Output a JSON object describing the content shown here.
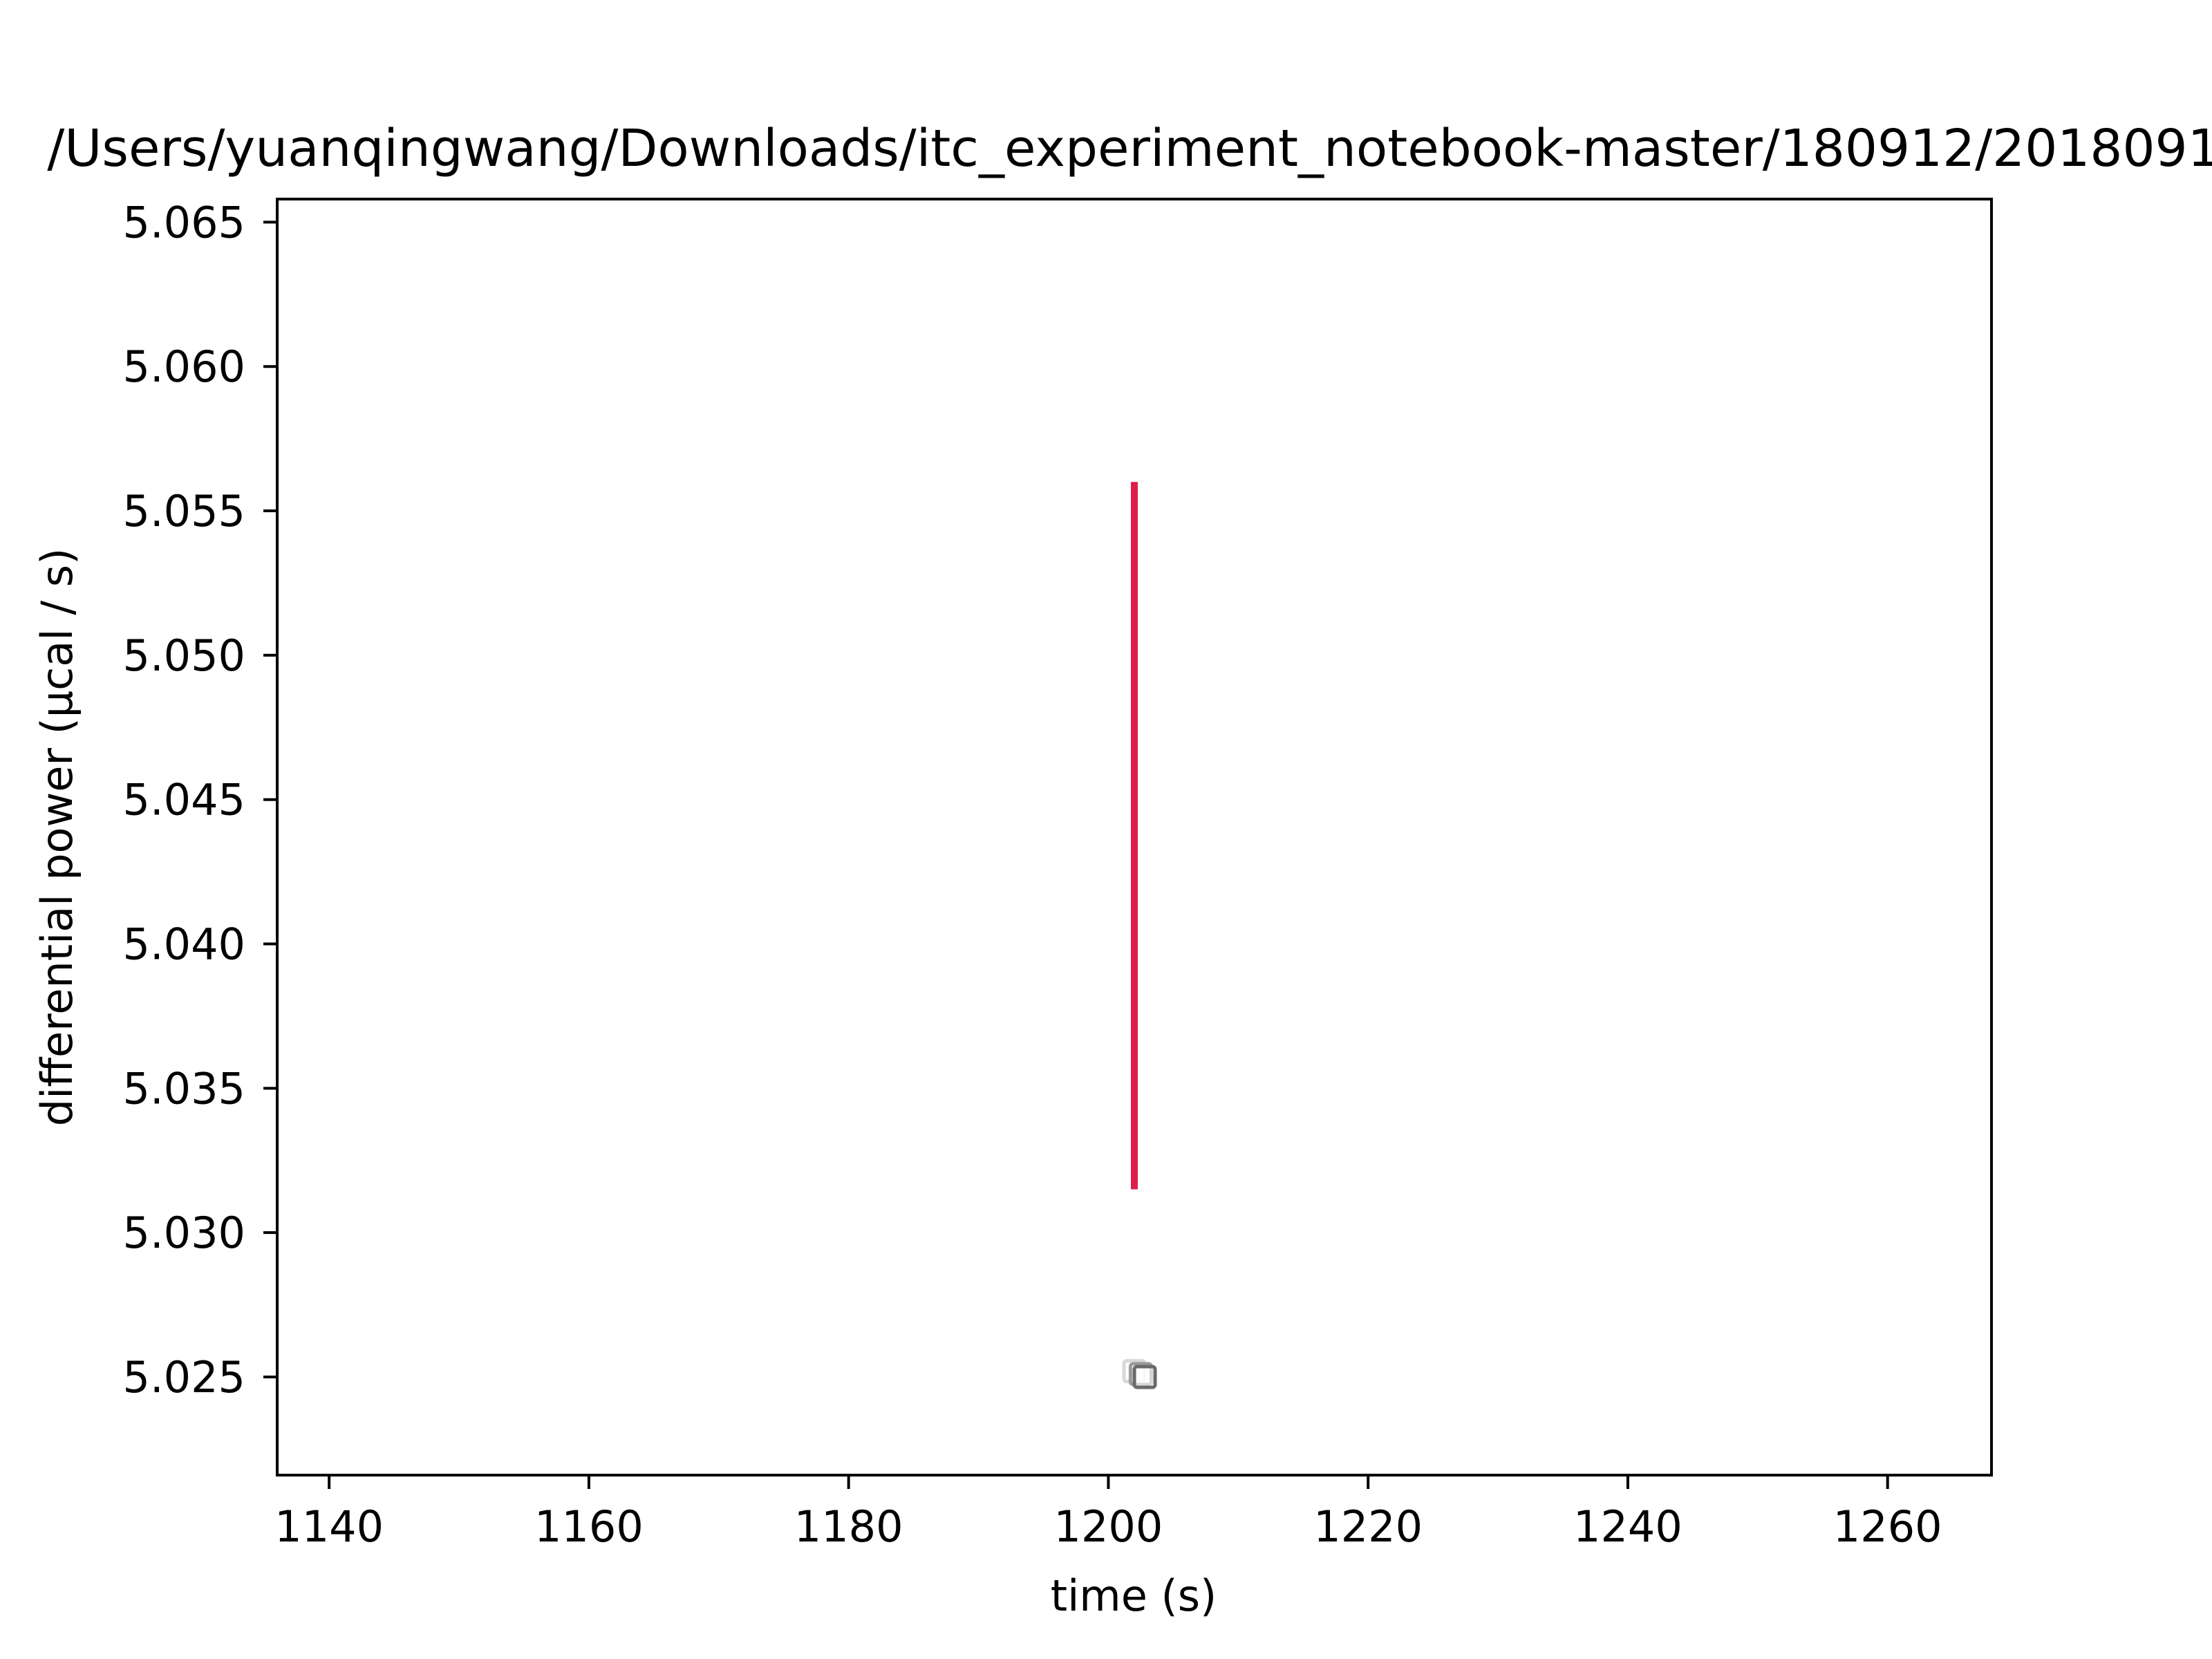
{
  "chart_data": {
    "type": "line",
    "title": "/Users/yuanqingwang/Downloads/itc_experiment_notebook-master/180912/2018091",
    "xlabel": "time (s)",
    "ylabel": "differential power (μcal / s)",
    "xlim": [
      1136,
      1268
    ],
    "ylim": [
      5.0216,
      5.0658
    ],
    "xticks": [
      1140,
      1160,
      1180,
      1200,
      1220,
      1240,
      1260
    ],
    "xtick_labels": [
      "1140",
      "1160",
      "1180",
      "1200",
      "1220",
      "1240",
      "1260"
    ],
    "yticks": [
      5.025,
      5.03,
      5.035,
      5.04,
      5.045,
      5.05,
      5.055,
      5.06,
      5.065
    ],
    "ytick_labels": [
      "5.025",
      "5.030",
      "5.035",
      "5.040",
      "5.045",
      "5.050",
      "5.055",
      "5.060",
      "5.065"
    ],
    "grid": false,
    "series": [
      {
        "kind": "line",
        "color": "#dc1f4a",
        "points": [
          {
            "x": 1202.0,
            "y": 5.0315
          },
          {
            "x": 1202.0,
            "y": 5.056
          }
        ]
      },
      {
        "kind": "markers",
        "marker": "square",
        "colors": [
          "#d8d8d8",
          "#9a9a9a",
          "#6a6a6a"
        ],
        "points": [
          {
            "x": 1202.0,
            "y": 5.0252
          },
          {
            "x": 1202.5,
            "y": 5.0251
          },
          {
            "x": 1202.8,
            "y": 5.025
          }
        ]
      }
    ]
  }
}
